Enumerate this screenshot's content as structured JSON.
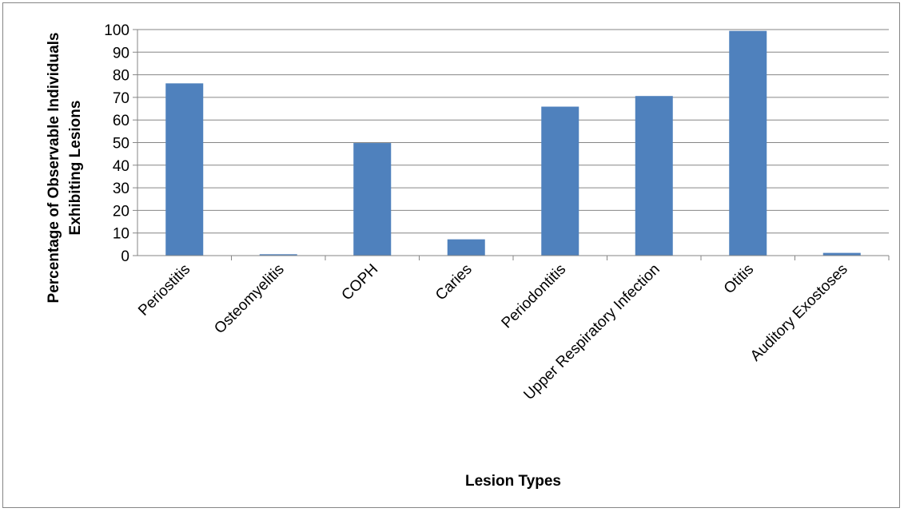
{
  "chart_data": {
    "type": "bar",
    "title": "",
    "xlabel": "Lesion Types",
    "ylabel": [
      "Percentage of Observable Individuals",
      "Exhibiting Lesions"
    ],
    "categories": [
      "Periostitis",
      "Osteomyelitis",
      "COPH",
      "Caries",
      "Periodontitis",
      "Upper Respiratory Infection",
      "Otitis",
      "Auditory Exostoses"
    ],
    "series": [
      {
        "values": [
          76.2,
          0.6,
          49.8,
          7.2,
          65.9,
          70.6,
          99.4,
          1.2
        ]
      }
    ],
    "ylim": [
      0,
      100
    ],
    "yticks": [
      "0",
      "10",
      "20",
      "30",
      "40",
      "50",
      "60",
      "70",
      "80",
      "90",
      "100"
    ],
    "grid": true,
    "legend": "none",
    "colors": {
      "bar": "#4f81bd",
      "grid": "#868686",
      "axis": "#868686"
    }
  }
}
